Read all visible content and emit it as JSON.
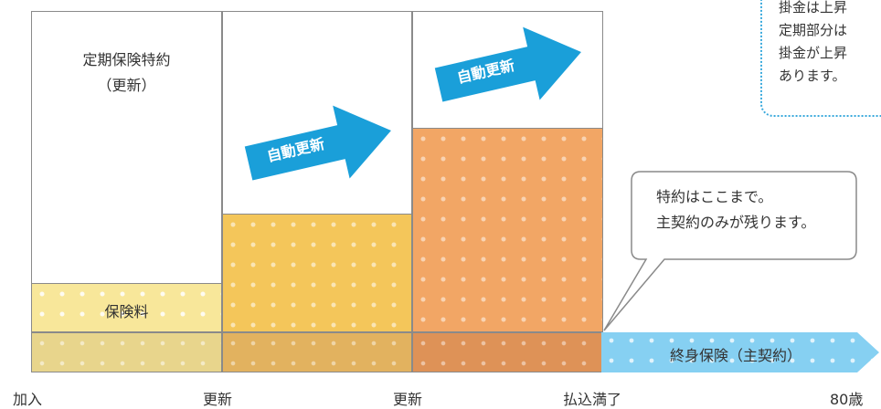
{
  "columns": {
    "first": {
      "rider_title": "定期保険特約",
      "rider_sub": "（更新）",
      "premium_label": "保険料"
    },
    "second": {
      "arrow_label": "自動更新"
    },
    "third": {
      "arrow_label": "自動更新"
    }
  },
  "whole_life_bar": {
    "label": "終身保険（主契約）"
  },
  "callout": {
    "line1": "特約はここまで。",
    "line2": "主契約のみが残ります。"
  },
  "top_note": {
    "lines": [
      "掛金は上昇",
      "定期部分は",
      "掛金が上昇",
      "あります。"
    ]
  },
  "timeline": {
    "ticks": [
      "加入",
      "更新",
      "更新",
      "払込満了",
      "80歳"
    ]
  },
  "colors": {
    "arrow_blue": "#1a9fd9",
    "note_border": "#3aa9dc",
    "whole_life_blue": "#7fcdf0"
  }
}
